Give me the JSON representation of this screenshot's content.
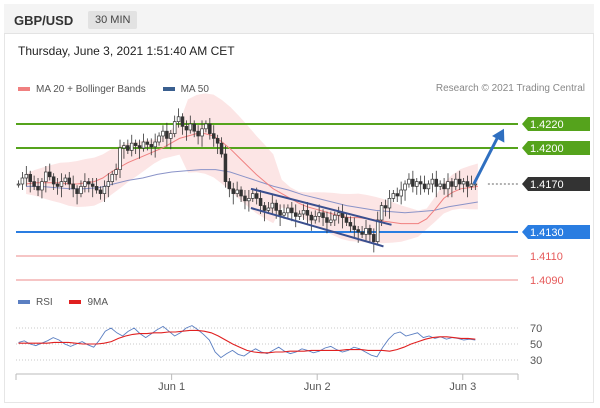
{
  "header": {
    "symbol": "GBP/USD",
    "interval": "30 MIN"
  },
  "datetime": "Thursday, June 3, 2021 1:51:40 AM CET",
  "credit": "Research © 2021 Trading Central",
  "legend_price": [
    {
      "label": "MA 20 + Bollinger Bands",
      "color": "#f08080"
    },
    {
      "label": "MA 50",
      "color": "#3a5f8f"
    }
  ],
  "legend_rsi": [
    {
      "label": "RSI",
      "color": "#5b7fc2"
    },
    {
      "label": "9MA",
      "color": "#e02020"
    }
  ],
  "chart_data": [
    {
      "type": "candlestick",
      "x_labels": [
        "Jun 1",
        "Jun 2",
        "Jun 3"
      ],
      "ylim": [
        1.408,
        1.424
      ],
      "price_levels": [
        {
          "value": 1.422,
          "label": "1.4220",
          "kind": "resistance",
          "color": "#55a31c"
        },
        {
          "value": 1.42,
          "label": "1.4200",
          "kind": "resistance",
          "color": "#55a31c"
        },
        {
          "value": 1.417,
          "label": "1.4170",
          "kind": "last-price",
          "color": "#333333"
        },
        {
          "value": 1.413,
          "label": "1.4130",
          "kind": "pivot",
          "color": "#2a7de1"
        },
        {
          "value": 1.411,
          "label": "1.4110",
          "kind": "support",
          "color": "#e65a5a"
        },
        {
          "value": 1.409,
          "label": "1.4090",
          "kind": "support",
          "color": "#e65a5a"
        }
      ],
      "close_path": [
        1.417,
        1.4175,
        1.4178,
        1.4172,
        1.4168,
        1.4165,
        1.4172,
        1.418,
        1.4176,
        1.417,
        1.4168,
        1.4172,
        1.4175,
        1.417,
        1.4166,
        1.4162,
        1.4168,
        1.4172,
        1.417,
        1.4168,
        1.4165,
        1.4162,
        1.4168,
        1.4172,
        1.4178,
        1.4182,
        1.42,
        1.4202,
        1.4198,
        1.4204,
        1.4202,
        1.42,
        1.4205,
        1.4203,
        1.4201,
        1.4205,
        1.421,
        1.4214,
        1.4208,
        1.4212,
        1.4222,
        1.4226,
        1.4218,
        1.4215,
        1.422,
        1.4214,
        1.421,
        1.4216,
        1.422,
        1.4212,
        1.4208,
        1.4204,
        1.4195,
        1.4172,
        1.4166,
        1.4162,
        1.4165,
        1.416,
        1.4156,
        1.4158,
        1.4162,
        1.4158,
        1.4152,
        1.4148,
        1.415,
        1.4154,
        1.4148,
        1.4144,
        1.4146,
        1.415,
        1.4146,
        1.4143,
        1.4145,
        1.4148,
        1.4144,
        1.414,
        1.4143,
        1.4146,
        1.4142,
        1.4138,
        1.414,
        1.4144,
        1.4146,
        1.4142,
        1.4138,
        1.4135,
        1.4132,
        1.413,
        1.4128,
        1.4133,
        1.4128,
        1.4122,
        1.414,
        1.4152,
        1.415,
        1.4158,
        1.4162,
        1.416,
        1.4165,
        1.417,
        1.4174,
        1.4168,
        1.4172,
        1.417,
        1.4166,
        1.417,
        1.4174,
        1.4168,
        1.417,
        1.4166,
        1.4172,
        1.4168,
        1.4174,
        1.417,
        1.4172,
        1.4168,
        1.417,
        1.417
      ],
      "ma20": [
        1.417,
        1.4171,
        1.4171,
        1.4171,
        1.4171,
        1.417,
        1.417,
        1.4171,
        1.4172,
        1.4175,
        1.418,
        1.4184,
        1.4188,
        1.4191,
        1.4194,
        1.4197,
        1.42,
        1.4204,
        1.4208,
        1.421,
        1.4212,
        1.4212,
        1.421,
        1.4205,
        1.4199,
        1.4192,
        1.4185,
        1.4178,
        1.4172,
        1.4166,
        1.4162,
        1.4158,
        1.4154,
        1.4151,
        1.4149,
        1.4147,
        1.4145,
        1.4143,
        1.4142,
        1.4142,
        1.4141,
        1.414,
        1.4139,
        1.4138,
        1.4137,
        1.4137,
        1.4137,
        1.4141,
        1.4149,
        1.4158,
        1.4163,
        1.4166,
        1.4167,
        1.4168
      ],
      "ma50": [
        1.4168,
        1.4168,
        1.4167,
        1.4166,
        1.4166,
        1.4167,
        1.417,
        1.4173,
        1.4175,
        1.4178,
        1.418,
        1.4181,
        1.4182,
        1.4182,
        1.418,
        1.4176,
        1.4172,
        1.4168,
        1.4165,
        1.4161,
        1.4158,
        1.4155,
        1.4152,
        1.415,
        1.4148,
        1.4147,
        1.4146,
        1.4147,
        1.4148,
        1.4151,
        1.4153,
        1.4155
      ],
      "annotations": [
        {
          "kind": "channel-upper",
          "from": [
            1.4166,
            0.468
          ],
          "to": [
            1.4136,
            0.748
          ]
        },
        {
          "kind": "channel-lower",
          "from": [
            1.415,
            0.468
          ],
          "to": [
            1.4118,
            0.732
          ]
        },
        {
          "kind": "forecast-arrow",
          "from": [
            1.417,
            0.912
          ],
          "to": [
            1.4216,
            0.972
          ]
        }
      ]
    },
    {
      "type": "line",
      "name": "RSI (14)",
      "y_ticks": [
        70,
        50,
        30
      ],
      "ylim": [
        20,
        80
      ],
      "x_labels": [
        "Jun 1",
        "Jun 2",
        "Jun 3"
      ],
      "series": [
        {
          "name": "RSI",
          "values": [
            52,
            54,
            50,
            48,
            51,
            54,
            58,
            55,
            50,
            47,
            50,
            53,
            49,
            46,
            55,
            66,
            70,
            64,
            60,
            66,
            70,
            63,
            58,
            63,
            68,
            72,
            66,
            60,
            64,
            70,
            73,
            68,
            62,
            55,
            40,
            33,
            38,
            42,
            37,
            35,
            40,
            44,
            40,
            38,
            42,
            46,
            41,
            38,
            40,
            44,
            42,
            39,
            41,
            45,
            47,
            43,
            40,
            42,
            46,
            44,
            40,
            36,
            34,
            46,
            56,
            63,
            65,
            60,
            62,
            64,
            58,
            60,
            57,
            59,
            56,
            58,
            57,
            55,
            56,
            55
          ]
        },
        {
          "name": "9MA",
          "values": [
            51,
            51,
            51,
            51,
            51,
            52,
            52,
            52,
            51,
            50,
            50,
            50,
            51,
            53,
            57,
            60,
            62,
            63,
            63,
            64,
            64,
            65,
            65,
            66,
            67,
            67,
            66,
            64,
            60,
            55,
            50,
            46,
            42,
            40,
            39,
            39,
            40,
            40,
            41,
            41,
            41,
            42,
            42,
            42,
            42,
            42,
            43,
            43,
            43,
            42,
            42,
            42,
            41,
            43,
            46,
            50,
            53,
            56,
            58,
            59,
            59,
            58,
            57,
            57,
            56
          ]
        }
      ]
    }
  ]
}
